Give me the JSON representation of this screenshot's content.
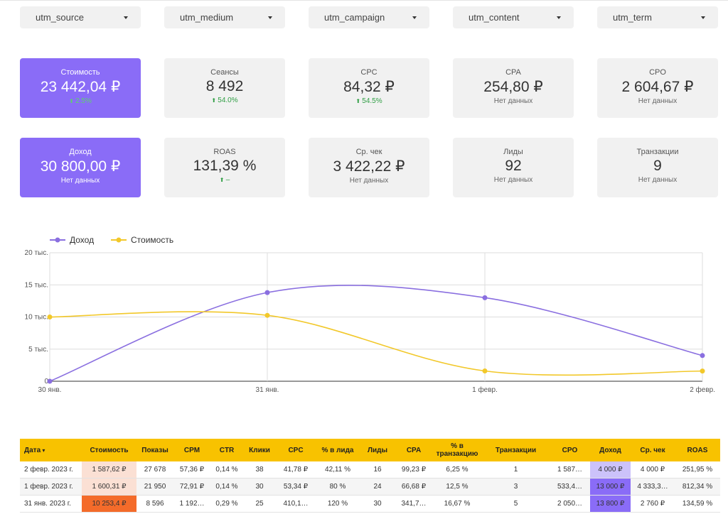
{
  "filters": [
    "utm_source",
    "utm_medium",
    "utm_campaign",
    "utm_content",
    "utm_term"
  ],
  "cards": [
    {
      "label": "Стоимость",
      "value": "23 442,04 ₽",
      "change": "2.5%",
      "accent": true
    },
    {
      "label": "Сеансы",
      "value": "8 492",
      "change": "54.0%"
    },
    {
      "label": "CPC",
      "value": "84,32 ₽",
      "change": "54.5%"
    },
    {
      "label": "CPA",
      "value": "254,80 ₽",
      "note": "Нет данных"
    },
    {
      "label": "CPO",
      "value": "2 604,67 ₽",
      "note": "Нет данных"
    },
    {
      "label": "Доход",
      "value": "30 800,00 ₽",
      "note": "Нет данных",
      "accent": true
    },
    {
      "label": "ROAS",
      "value": "131,39 %",
      "change": "–"
    },
    {
      "label": "Ср. чек",
      "value": "3 422,22 ₽",
      "note": "Нет данных"
    },
    {
      "label": "Лиды",
      "value": "92",
      "note": "Нет данных"
    },
    {
      "label": "Транзакции",
      "value": "9",
      "note": "Нет данных"
    }
  ],
  "chart_data": {
    "type": "line",
    "categories": [
      "30 янв.",
      "31 янв.",
      "1 февр.",
      "2 февр."
    ],
    "series": [
      {
        "name": "Доход",
        "color": "#8a6fe0",
        "values": [
          0,
          13800,
          13000,
          4000
        ]
      },
      {
        "name": "Стоимость",
        "color": "#f2c82a",
        "values": [
          10000,
          10253.4,
          1600.31,
          1587.62
        ]
      }
    ],
    "ylim": [
      0,
      20000
    ],
    "yticks": [
      0,
      {
        "value": 5000,
        "label": "5 тыс."
      },
      {
        "value": 10000,
        "label": "10 тыс."
      },
      {
        "value": 15000,
        "label": "15 тыс."
      },
      {
        "value": 20000,
        "label": "20 тыс."
      }
    ],
    "grid": true,
    "legend": "top-left"
  },
  "table": {
    "header": [
      "Дата",
      "Стоимость",
      "Показы",
      "CPM",
      "CTR",
      "Клики",
      "CPC",
      "% в лида",
      "Лиды",
      "CPA",
      "% в транзакцию",
      "Транзакции",
      "CPO",
      "Доход",
      "Ср. чек",
      "ROAS"
    ],
    "rows": [
      [
        "2 февр. 2023 г.",
        "1 587,62 ₽",
        "27 678",
        "57,36 ₽",
        "0,14 %",
        "38",
        "41,78 ₽",
        "42,11 %",
        "16",
        "99,23 ₽",
        "6,25 %",
        "1",
        "1 587…",
        "4 000 ₽",
        "4 000 ₽",
        "251,95 %"
      ],
      [
        "1 февр. 2023 г.",
        "1 600,31 ₽",
        "21 950",
        "72,91 ₽",
        "0,14 %",
        "30",
        "53,34 ₽",
        "80 %",
        "24",
        "66,68 ₽",
        "12,5 %",
        "3",
        "533,4…",
        "13 000 ₽",
        "4 333,3…",
        "812,34 %"
      ],
      [
        "31 янв. 2023 г.",
        "10 253,4 ₽",
        "8 596",
        "1 192…",
        "0,29 %",
        "25",
        "410,1…",
        "120 %",
        "30",
        "341,7…",
        "16,67 %",
        "5",
        "2 050…",
        "13 800 ₽",
        "2 760 ₽",
        "134,59 %"
      ]
    ]
  }
}
